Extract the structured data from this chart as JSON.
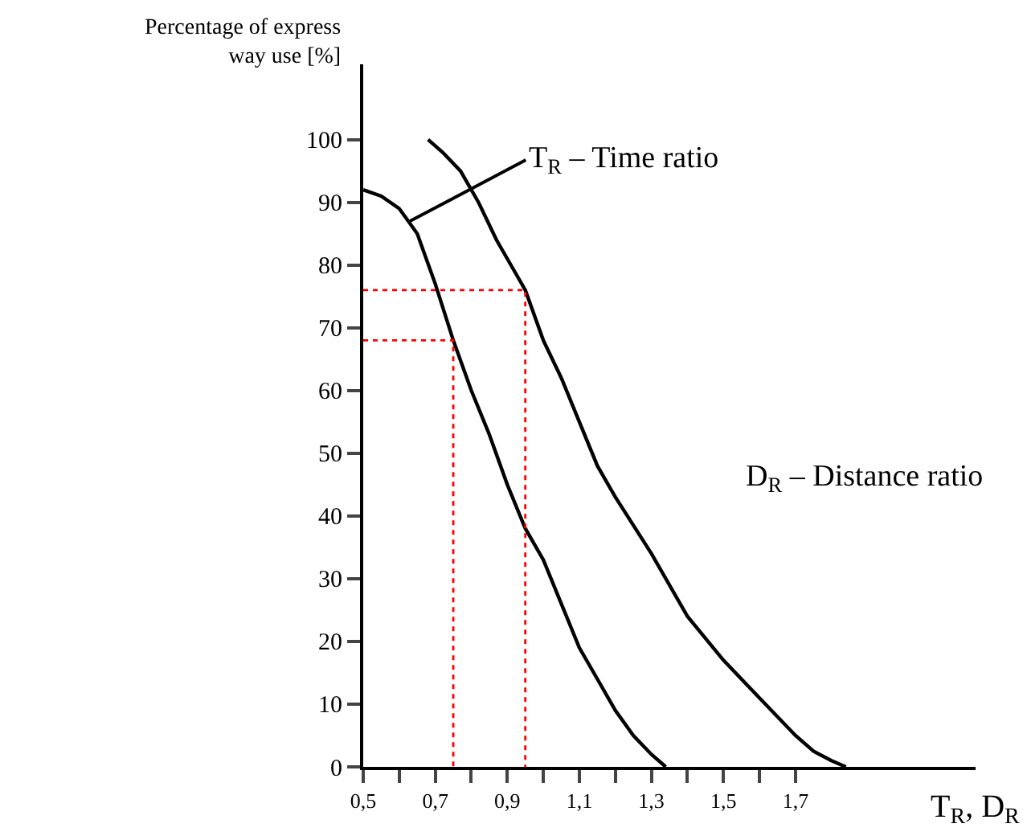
{
  "chart_data": {
    "type": "line",
    "ylabel": "Percentage of express\nway use [%]",
    "xlabel": "T$_{R}$, D$_{R}$",
    "annotations": [
      {
        "text": "T$_{R}$ – Time ratio",
        "x": 0.63,
        "y": 87
      },
      "D$_{R}$ – Distance ratio"
    ],
    "series": [
      {
        "color": "#000000",
        "x": [
          0.5,
          0.55,
          0.6,
          0.65,
          0.7,
          0.75,
          0.8,
          0.85,
          0.9,
          0.95,
          1.0,
          1.05,
          1.1,
          1.15,
          1.2,
          1.25,
          1.3,
          1.34
        ],
        "values": [
          92,
          91,
          89,
          85,
          77,
          68,
          60,
          53,
          45,
          38,
          33,
          26,
          19,
          14,
          9,
          5,
          2,
          0
        ]
      },
      {
        "color": "#000000",
        "x": [
          0.68,
          0.72,
          0.77,
          0.82,
          0.87,
          0.92,
          0.95,
          1.0,
          1.05,
          1.1,
          1.15,
          1.2,
          1.3,
          1.4,
          1.5,
          1.6,
          1.7,
          1.75,
          1.8,
          1.84
        ],
        "values": [
          100,
          98,
          95,
          90,
          84,
          79,
          76,
          68,
          62,
          55,
          48,
          43,
          34,
          24,
          17,
          11,
          5,
          2.5,
          1,
          0
        ]
      },
      {
        "color": "#ff0000",
        "line_style": "dotted",
        "x": [
          0.5,
          0.75,
          0.75
        ],
        "values": [
          68,
          68,
          0
        ]
      },
      {
        "color": "#ff0000",
        "line_style": "dotted",
        "x": [
          0.5,
          0.95,
          0.95
        ],
        "values": [
          76,
          76,
          0
        ]
      }
    ],
    "xlim": [
      0.5,
      2.2
    ],
    "ylim": [
      0,
      112
    ],
    "xticks": [
      {
        "value": 0.5,
        "label": "0,5"
      },
      {
        "value": 0.6,
        "label": null
      },
      {
        "value": 0.7,
        "label": "0,7"
      },
      {
        "value": 0.8,
        "label": null
      },
      {
        "value": 0.9,
        "label": "0,9"
      },
      {
        "value": 1.0,
        "label": null
      },
      {
        "value": 1.1,
        "label": "1,1"
      },
      {
        "value": 1.2,
        "label": null
      },
      {
        "value": 1.3,
        "label": "1,3"
      },
      {
        "value": 1.4,
        "label": null
      },
      {
        "value": 1.5,
        "label": "1,5"
      },
      {
        "value": 1.6,
        "label": null
      },
      {
        "value": 1.7,
        "label": "1,7"
      }
    ],
    "yticks": [
      0,
      10,
      20,
      30,
      40,
      50,
      60,
      70,
      80,
      90,
      100
    ],
    "marker": "none",
    "line_style": "solid"
  }
}
